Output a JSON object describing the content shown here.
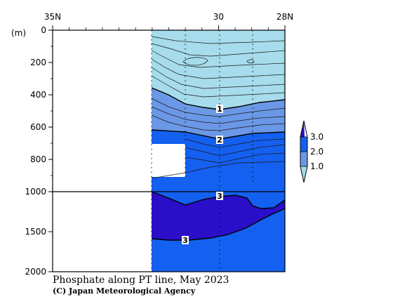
{
  "chart_data": {
    "type": "heatmap",
    "title": "Phosphate along PT line, May 2023",
    "credit": "(C) Japan Meteorological Agency",
    "y_unit": "(m)",
    "x_ticks": [
      "35N",
      "30",
      "28N"
    ],
    "y_ticks": [
      "0",
      "200",
      "400",
      "600",
      "800",
      "1000",
      "1500",
      "2000"
    ],
    "y_axis_note": "depth axis is linear 0-1000 m, compressed scale 1000-2000 m",
    "contour_labels": [
      {
        "text": "1",
        "lat": 30.0,
        "depth": 480
      },
      {
        "text": "2",
        "lat": 30.0,
        "depth": 680
      },
      {
        "text": "3",
        "lat": 30.0,
        "depth": 1030
      },
      {
        "text": "3",
        "lat": 31.1,
        "depth": 1560
      }
    ],
    "legend": {
      "ticks": [
        "3.0",
        "2.0",
        "1.0"
      ],
      "levels": [
        {
          "range": "< 1.0",
          "color": "#a6dceb"
        },
        {
          "range": "1.0 - 2.0",
          "color": "#6b98e6"
        },
        {
          "range": "2.0 - 3.0",
          "color": "#1460f0"
        },
        {
          "range": "> 3.0",
          "color": "#2a0ec8"
        }
      ]
    },
    "colors": {
      "low": "#a6dceb",
      "mid": "#6b98e6",
      "high": "#1460f0",
      "max": "#2a0ec8"
    }
  }
}
